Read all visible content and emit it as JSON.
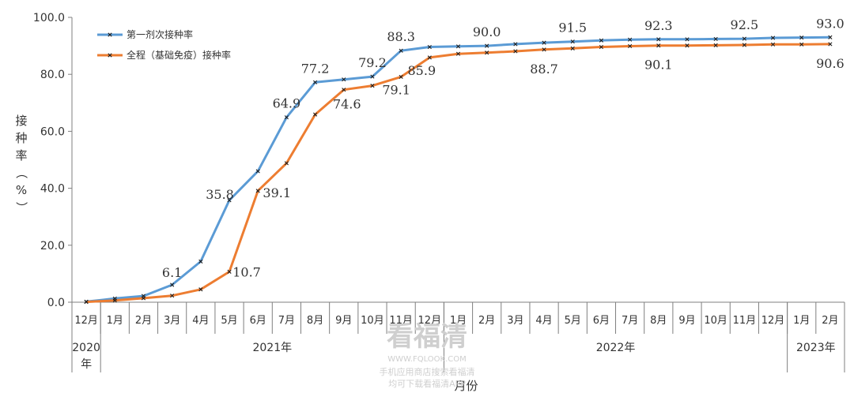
{
  "chart_data": {
    "type": "line",
    "categories": [
      "12月",
      "1月",
      "2月",
      "3月",
      "4月",
      "5月",
      "6月",
      "7月",
      "8月",
      "9月",
      "10月",
      "11月",
      "12月",
      "1月",
      "2月",
      "3月",
      "4月",
      "5月",
      "6月",
      "7月",
      "8月",
      "9月",
      "10月",
      "11月",
      "12月",
      "1月",
      "2月"
    ],
    "year_groups": [
      {
        "label_top": "2020",
        "label_bottom": "年",
        "start": 0,
        "end": 0
      },
      {
        "label": "2021年",
        "start": 1,
        "end": 12
      },
      {
        "label": "2022年",
        "start": 13,
        "end": 24
      },
      {
        "label": "2023年",
        "start": 25,
        "end": 26
      }
    ],
    "series": [
      {
        "name": "第一剂次接种率",
        "color": "#5b9bd5",
        "values": [
          0.2,
          1.3,
          2.2,
          6.1,
          14.3,
          35.8,
          46.0,
          64.9,
          77.2,
          78.2,
          79.2,
          88.3,
          89.6,
          89.8,
          90.0,
          90.6,
          91.1,
          91.5,
          91.9,
          92.2,
          92.3,
          92.3,
          92.4,
          92.5,
          92.8,
          92.9,
          93.0
        ]
      },
      {
        "name": "全程（基础免疫）接种率",
        "color": "#ed7d31",
        "values": [
          0.1,
          0.6,
          1.4,
          2.3,
          4.5,
          10.7,
          39.1,
          48.8,
          65.9,
          74.6,
          76.0,
          79.1,
          85.9,
          87.2,
          87.6,
          88.1,
          88.7,
          89.1,
          89.6,
          89.9,
          90.1,
          90.1,
          90.2,
          90.3,
          90.5,
          90.5,
          90.6
        ]
      }
    ],
    "data_labels": [
      {
        "series": 0,
        "index": 3,
        "text": "6.1"
      },
      {
        "series": 0,
        "index": 5,
        "text": "35.8"
      },
      {
        "series": 0,
        "index": 7,
        "text": "64.9"
      },
      {
        "series": 0,
        "index": 8,
        "text": "77.2"
      },
      {
        "series": 0,
        "index": 10,
        "text": "79.2"
      },
      {
        "series": 0,
        "index": 11,
        "text": "88.3"
      },
      {
        "series": 0,
        "index": 14,
        "text": "90.0"
      },
      {
        "series": 0,
        "index": 17,
        "text": "91.5"
      },
      {
        "series": 0,
        "index": 20,
        "text": "92.3"
      },
      {
        "series": 0,
        "index": 23,
        "text": "92.5"
      },
      {
        "series": 0,
        "index": 26,
        "text": "93.0"
      },
      {
        "series": 1,
        "index": 5,
        "text": "10.7"
      },
      {
        "series": 1,
        "index": 6,
        "text": "39.1"
      },
      {
        "series": 1,
        "index": 9,
        "text": "74.6"
      },
      {
        "series": 1,
        "index": 11,
        "text": "79.1"
      },
      {
        "series": 1,
        "index": 12,
        "text": "85.9"
      },
      {
        "series": 1,
        "index": 16,
        "text": "88.7"
      },
      {
        "series": 1,
        "index": 20,
        "text": "90.1"
      },
      {
        "series": 1,
        "index": 26,
        "text": "90.6"
      }
    ],
    "y_ticks": [
      "0.0",
      "20.0",
      "40.0",
      "60.0",
      "80.0",
      "100.0"
    ],
    "ylim": [
      0,
      100
    ],
    "ylabel": "接种率（%）",
    "xlabel": "月份",
    "legend_position": "top-left",
    "grid": false
  },
  "watermark": {
    "title": "看福清",
    "url": "WWW.FQLOOK.COM",
    "line1": "手机应用商店搜索看福清",
    "line2": "均可下载看福清APP"
  }
}
